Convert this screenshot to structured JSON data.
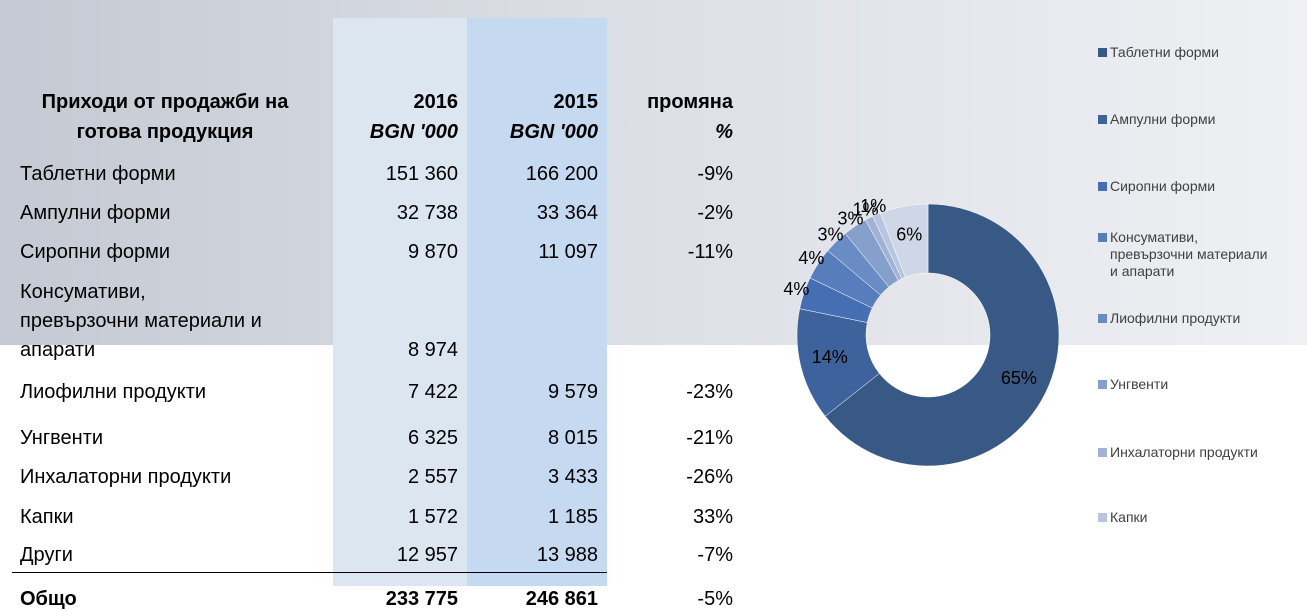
{
  "table": {
    "header": [
      [
        "Приходи от продажби на",
        "готова продукция"
      ],
      [
        "2016",
        "BGN '000"
      ],
      [
        "2015",
        "BGN '000"
      ],
      [
        "промяна",
        "%"
      ]
    ],
    "rows": [
      [
        [
          "Таблетни форми"
        ],
        "151 360",
        "166 200",
        "-9%"
      ],
      [
        [
          "Ампулни форми"
        ],
        "32 738",
        "33 364",
        "-2%"
      ],
      [
        [
          "Сиропни форми"
        ],
        "9 870",
        "11 097",
        "-11%"
      ],
      [
        [
          "Консумативи,",
          "превързочни материали и",
          "апарати"
        ],
        "8 974",
        null,
        null
      ],
      [
        [
          "Лиофилни продукти"
        ],
        "7 422",
        "9 579",
        "-23%"
      ],
      [
        [
          "Унгвенти"
        ],
        "6 325",
        "8 015",
        "-21%"
      ],
      [
        [
          "Инхалаторни продукти"
        ],
        "2 557",
        "3 433",
        "-26%"
      ],
      [
        [
          "Капки"
        ],
        "1 572",
        "1 185",
        "33%"
      ],
      [
        [
          "Други"
        ],
        "12 957",
        "13 988",
        "-7%"
      ]
    ],
    "total": [
      "Общо",
      "233 775",
      "246 861",
      "-5%"
    ]
  },
  "chart_data": {
    "type": "donut",
    "categories": [
      "Таблетни форми",
      "Ампулни форми",
      "Сиропни форми",
      "Консумативи, превързочни материали и апарати",
      "Лиофилни продукти",
      "Унгвенти",
      "Инхалаторни продукти",
      "Капки",
      null
    ],
    "values": [
      65,
      14,
      4,
      4,
      3,
      3,
      1,
      1,
      6
    ],
    "value_labels": [
      "65%",
      "14%",
      "4%",
      "4%",
      "3%",
      "3%",
      "1%",
      "1%",
      "6%"
    ],
    "colors": [
      "#385985",
      "#3d629c",
      "#466fb3",
      "#577dbd",
      "#6a8cc5",
      "#86a0cc",
      "#a1b3d5",
      "#b8c5de",
      "#cfd7e6"
    ],
    "legend": "right"
  }
}
